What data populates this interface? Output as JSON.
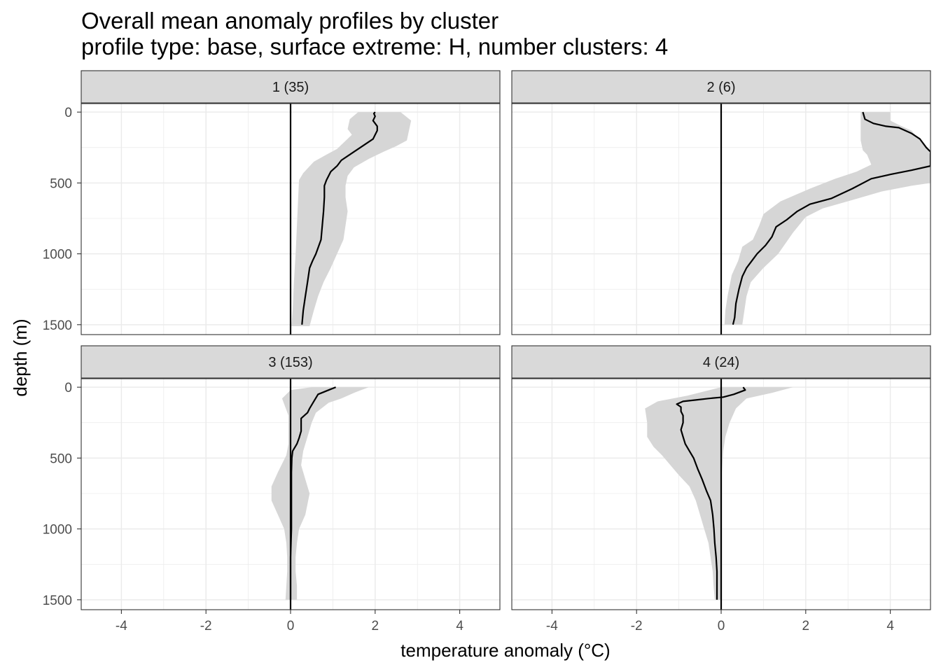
{
  "chart_data": {
    "type": "line",
    "title": "Overall mean anomaly profiles by cluster",
    "subtitle": "profile type: base, surface extreme: H, number clusters: 4",
    "xlabel": "temperature anomaly (°C)",
    "ylabel": "depth (m)",
    "xlim": [
      -4.95,
      4.95
    ],
    "ylim": [
      1570,
      -60
    ],
    "x_ticks": [
      -4,
      -2,
      0,
      2,
      4
    ],
    "x_tick_labels": [
      "-4",
      "-2",
      "0",
      "2",
      "4"
    ],
    "y_ticks": [
      0,
      500,
      1000,
      1500
    ],
    "y_tick_labels": [
      "0",
      "500",
      "1000",
      "1500"
    ],
    "grid": true,
    "reference_line_x": 0,
    "panels": [
      {
        "label": "1 (35)",
        "mean": [
          [
            2.0,
            0
          ],
          [
            1.97,
            10
          ],
          [
            2.0,
            30
          ],
          [
            1.95,
            60
          ],
          [
            2.0,
            80
          ],
          [
            2.05,
            100
          ],
          [
            2.05,
            130
          ],
          [
            2.0,
            160
          ],
          [
            1.95,
            190
          ],
          [
            1.75,
            230
          ],
          [
            1.55,
            270
          ],
          [
            1.35,
            310
          ],
          [
            1.2,
            340
          ],
          [
            1.1,
            380
          ],
          [
            0.95,
            420
          ],
          [
            0.85,
            480
          ],
          [
            0.8,
            520
          ],
          [
            0.8,
            600
          ],
          [
            0.78,
            700
          ],
          [
            0.75,
            800
          ],
          [
            0.72,
            900
          ],
          [
            0.6,
            1000
          ],
          [
            0.52,
            1050
          ],
          [
            0.45,
            1100
          ],
          [
            0.4,
            1200
          ],
          [
            0.35,
            1300
          ],
          [
            0.3,
            1400
          ],
          [
            0.27,
            1500
          ]
        ],
        "lower": [
          [
            1.6,
            0
          ],
          [
            1.4,
            50
          ],
          [
            1.35,
            120
          ],
          [
            1.45,
            160
          ],
          [
            1.1,
            260
          ],
          [
            0.85,
            300
          ],
          [
            0.55,
            350
          ],
          [
            0.3,
            430
          ],
          [
            0.2,
            480
          ],
          [
            0.18,
            600
          ],
          [
            0.15,
            800
          ],
          [
            0.12,
            1000
          ],
          [
            0.08,
            1200
          ],
          [
            0.05,
            1400
          ],
          [
            0.02,
            1510
          ]
        ],
        "upper": [
          [
            2.6,
            0
          ],
          [
            2.85,
            60
          ],
          [
            2.8,
            130
          ],
          [
            2.75,
            200
          ],
          [
            2.5,
            240
          ],
          [
            2.2,
            280
          ],
          [
            1.85,
            330
          ],
          [
            1.5,
            390
          ],
          [
            1.35,
            450
          ],
          [
            1.3,
            520
          ],
          [
            1.3,
            600
          ],
          [
            1.35,
            700
          ],
          [
            1.3,
            800
          ],
          [
            1.25,
            900
          ],
          [
            1.1,
            1000
          ],
          [
            0.95,
            1100
          ],
          [
            0.78,
            1200
          ],
          [
            0.65,
            1300
          ],
          [
            0.55,
            1400
          ],
          [
            0.45,
            1510
          ]
        ]
      },
      {
        "label": "2 (6)",
        "mean": [
          [
            3.35,
            0
          ],
          [
            3.4,
            50
          ],
          [
            3.6,
            80
          ],
          [
            3.9,
            100
          ],
          [
            4.2,
            110
          ],
          [
            4.5,
            150
          ],
          [
            4.7,
            190
          ],
          [
            4.85,
            250
          ],
          [
            4.95,
            280
          ],
          [
            4.95,
            380
          ],
          [
            4.5,
            410
          ],
          [
            4.0,
            440
          ],
          [
            3.55,
            470
          ],
          [
            3.1,
            540
          ],
          [
            2.6,
            610
          ],
          [
            2.1,
            650
          ],
          [
            1.8,
            700
          ],
          [
            1.55,
            760
          ],
          [
            1.3,
            810
          ],
          [
            1.2,
            880
          ],
          [
            1.05,
            940
          ],
          [
            0.85,
            1000
          ],
          [
            0.75,
            1040
          ],
          [
            0.6,
            1100
          ],
          [
            0.5,
            1160
          ],
          [
            0.42,
            1250
          ],
          [
            0.35,
            1350
          ],
          [
            0.32,
            1450
          ],
          [
            0.28,
            1500
          ]
        ],
        "lower": [
          [
            3.3,
            0
          ],
          [
            3.3,
            100
          ],
          [
            3.3,
            200
          ],
          [
            3.35,
            270
          ],
          [
            3.45,
            300
          ],
          [
            3.55,
            370
          ],
          [
            3.2,
            420
          ],
          [
            2.7,
            470
          ],
          [
            2.1,
            540
          ],
          [
            1.4,
            630
          ],
          [
            1.0,
            720
          ],
          [
            0.9,
            800
          ],
          [
            0.75,
            900
          ],
          [
            0.5,
            950
          ],
          [
            0.4,
            1050
          ],
          [
            0.25,
            1150
          ],
          [
            0.15,
            1300
          ],
          [
            0.1,
            1400
          ],
          [
            0.08,
            1500
          ]
        ],
        "upper": [
          [
            4.0,
            0
          ],
          [
            4.0,
            60
          ],
          [
            4.2,
            90
          ],
          [
            4.5,
            130
          ],
          [
            4.7,
            200
          ],
          [
            4.9,
            260
          ],
          [
            4.95,
            320
          ],
          [
            4.95,
            500
          ],
          [
            4.5,
            520
          ],
          [
            3.8,
            560
          ],
          [
            3.1,
            620
          ],
          [
            2.4,
            680
          ],
          [
            2.0,
            740
          ],
          [
            1.7,
            850
          ],
          [
            1.35,
            1000
          ],
          [
            1.0,
            1100
          ],
          [
            0.7,
            1200
          ],
          [
            0.6,
            1300
          ],
          [
            0.55,
            1400
          ],
          [
            0.5,
            1500
          ]
        ]
      },
      {
        "label": "3 (153)",
        "mean": [
          [
            1.07,
            0
          ],
          [
            0.9,
            20
          ],
          [
            0.65,
            50
          ],
          [
            0.55,
            100
          ],
          [
            0.45,
            150
          ],
          [
            0.4,
            180
          ],
          [
            0.25,
            220
          ],
          [
            0.25,
            270
          ],
          [
            0.25,
            310
          ],
          [
            0.2,
            360
          ],
          [
            0.15,
            400
          ],
          [
            0.05,
            450
          ],
          [
            0.03,
            500
          ],
          [
            0.02,
            600
          ],
          [
            0.02,
            700
          ],
          [
            0.02,
            800
          ],
          [
            0.02,
            900
          ],
          [
            0.02,
            1000
          ],
          [
            0.01,
            1100
          ],
          [
            0.0,
            1200
          ],
          [
            0.0,
            1300
          ],
          [
            0.0,
            1400
          ],
          [
            0.0,
            1500
          ]
        ],
        "lower": [
          [
            0.5,
            0
          ],
          [
            0.0,
            20
          ],
          [
            -0.2,
            80
          ],
          [
            -0.15,
            120
          ],
          [
            -0.05,
            200
          ],
          [
            -0.05,
            300
          ],
          [
            -0.05,
            400
          ],
          [
            -0.1,
            480
          ],
          [
            -0.3,
            600
          ],
          [
            -0.45,
            700
          ],
          [
            -0.45,
            800
          ],
          [
            -0.3,
            900
          ],
          [
            -0.15,
            1000
          ],
          [
            -0.1,
            1100
          ],
          [
            -0.08,
            1200
          ],
          [
            -0.08,
            1300
          ],
          [
            -0.1,
            1400
          ],
          [
            -0.12,
            1500
          ]
        ],
        "upper": [
          [
            1.85,
            0
          ],
          [
            1.5,
            40
          ],
          [
            1.2,
            80
          ],
          [
            0.9,
            110
          ],
          [
            0.6,
            180
          ],
          [
            0.5,
            250
          ],
          [
            0.4,
            350
          ],
          [
            0.3,
            450
          ],
          [
            0.25,
            550
          ],
          [
            0.35,
            650
          ],
          [
            0.45,
            750
          ],
          [
            0.35,
            900
          ],
          [
            0.2,
            1000
          ],
          [
            0.15,
            1100
          ],
          [
            0.12,
            1200
          ],
          [
            0.12,
            1300
          ],
          [
            0.15,
            1400
          ],
          [
            0.15,
            1500
          ]
        ]
      },
      {
        "label": "4 (24)",
        "mean": [
          [
            0.52,
            0
          ],
          [
            0.57,
            20
          ],
          [
            0.3,
            50
          ],
          [
            0.05,
            70
          ],
          [
            -0.3,
            80
          ],
          [
            -0.6,
            90
          ],
          [
            -0.9,
            100
          ],
          [
            -1.05,
            120
          ],
          [
            -0.95,
            140
          ],
          [
            -0.95,
            170
          ],
          [
            -0.9,
            200
          ],
          [
            -0.9,
            250
          ],
          [
            -0.95,
            300
          ],
          [
            -0.9,
            350
          ],
          [
            -0.85,
            400
          ],
          [
            -0.75,
            450
          ],
          [
            -0.65,
            500
          ],
          [
            -0.55,
            580
          ],
          [
            -0.45,
            650
          ],
          [
            -0.35,
            730
          ],
          [
            -0.25,
            800
          ],
          [
            -0.2,
            900
          ],
          [
            -0.17,
            1000
          ],
          [
            -0.15,
            1100
          ],
          [
            -0.12,
            1200
          ],
          [
            -0.1,
            1300
          ],
          [
            -0.1,
            1400
          ],
          [
            -0.1,
            1500
          ]
        ],
        "lower": [
          [
            0.0,
            0
          ],
          [
            -0.8,
            60
          ],
          [
            -1.5,
            100
          ],
          [
            -1.8,
            150
          ],
          [
            -1.75,
            250
          ],
          [
            -1.75,
            350
          ],
          [
            -1.6,
            420
          ],
          [
            -1.4,
            480
          ],
          [
            -1.2,
            550
          ],
          [
            -1.0,
            620
          ],
          [
            -0.75,
            700
          ],
          [
            -0.6,
            800
          ],
          [
            -0.5,
            900
          ],
          [
            -0.4,
            1000
          ],
          [
            -0.3,
            1100
          ],
          [
            -0.25,
            1200
          ],
          [
            -0.2,
            1300
          ],
          [
            -0.18,
            1400
          ],
          [
            -0.15,
            1500
          ]
        ],
        "upper": [
          [
            1.7,
            0
          ],
          [
            1.2,
            40
          ],
          [
            0.6,
            80
          ],
          [
            0.35,
            150
          ],
          [
            0.2,
            250
          ],
          [
            0.1,
            350
          ],
          [
            0.05,
            450
          ],
          [
            0.02,
            600
          ],
          [
            0.02,
            800
          ],
          [
            0.02,
            1000
          ],
          [
            0.02,
            1200
          ],
          [
            0.02,
            1400
          ],
          [
            0.02,
            1500
          ]
        ]
      }
    ]
  }
}
